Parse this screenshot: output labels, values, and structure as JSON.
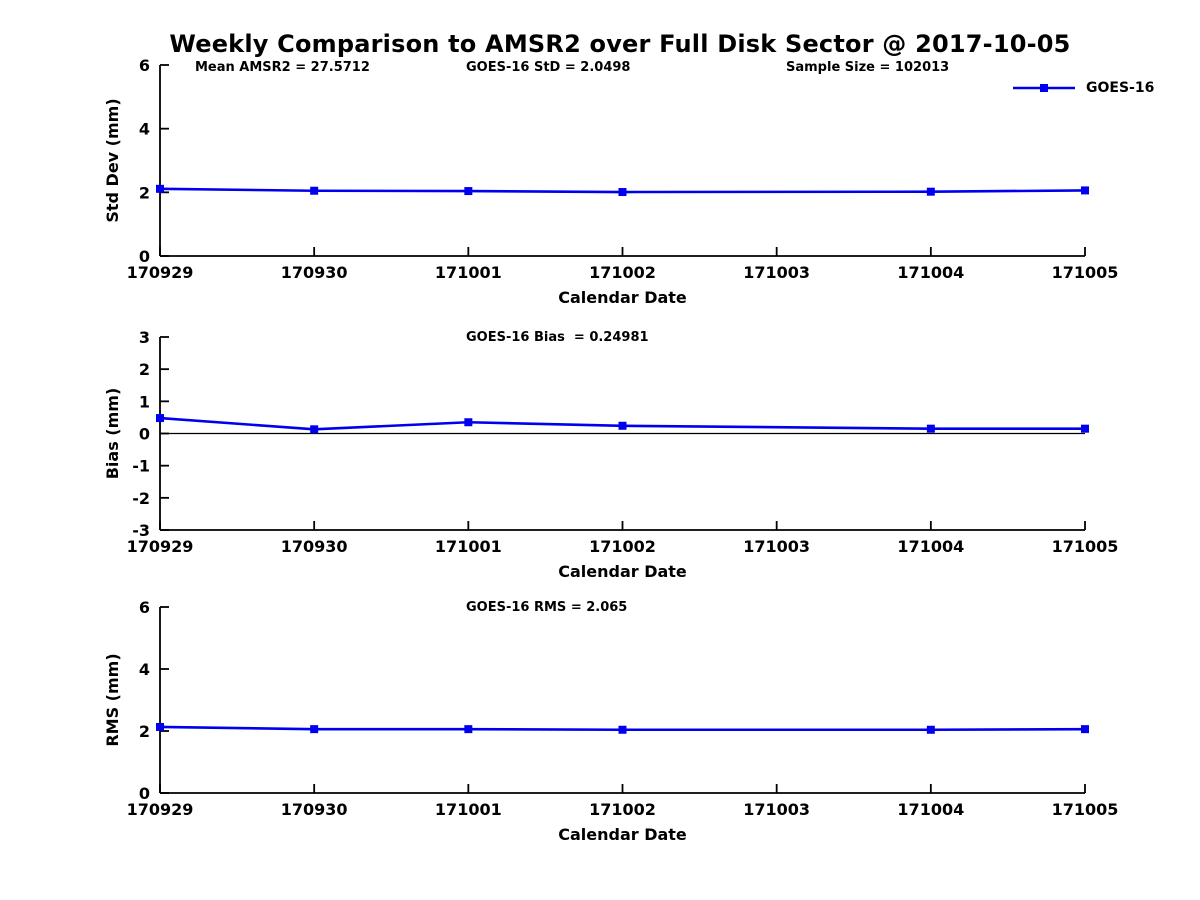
{
  "title": "Weekly Comparison to AMSR2 over Full Disk Sector @ 2017-10-05",
  "legend": {
    "label": "GOES-16"
  },
  "colors": {
    "series": "#0000ee",
    "axis": "#000000",
    "zero_line": "#000000",
    "text": "#000000",
    "background": "#ffffff"
  },
  "chart_data": [
    {
      "type": "line",
      "title": "",
      "ylabel": "Std Dev (mm)",
      "xlabel": "Calendar Date",
      "ylim": [
        0,
        6
      ],
      "yticks": [
        0,
        2,
        4,
        6
      ],
      "categories": [
        "170929",
        "170930",
        "171001",
        "171002",
        "171003",
        "171004",
        "171005"
      ],
      "grid": false,
      "zero_line": false,
      "annotations": [
        "Mean AMSR2 = 27.5712",
        "GOES-16 StD = 2.0498",
        "Sample Size = 102013"
      ],
      "series": [
        {
          "name": "GOES-16",
          "points": [
            {
              "x": "170929",
              "y": 2.11
            },
            {
              "x": "170930",
              "y": 2.05
            },
            {
              "x": "171001",
              "y": 2.04
            },
            {
              "x": "171002",
              "y": 2.01
            },
            {
              "x": "171004",
              "y": 2.02
            },
            {
              "x": "171005",
              "y": 2.06
            }
          ]
        }
      ]
    },
    {
      "type": "line",
      "title": "",
      "ylabel": "Bias (mm)",
      "xlabel": "Calendar Date",
      "ylim": [
        -3,
        3
      ],
      "yticks": [
        -3,
        -2,
        -1,
        0,
        1,
        2,
        3
      ],
      "categories": [
        "170929",
        "170930",
        "171001",
        "171002",
        "171003",
        "171004",
        "171005"
      ],
      "grid": false,
      "zero_line": true,
      "annotations": [
        "GOES-16 Bias  = 0.24981"
      ],
      "series": [
        {
          "name": "GOES-16",
          "points": [
            {
              "x": "170929",
              "y": 0.48
            },
            {
              "x": "170930",
              "y": 0.13
            },
            {
              "x": "171001",
              "y": 0.35
            },
            {
              "x": "171002",
              "y": 0.24
            },
            {
              "x": "171004",
              "y": 0.15
            },
            {
              "x": "171005",
              "y": 0.15
            }
          ]
        }
      ]
    },
    {
      "type": "line",
      "title": "",
      "ylabel": "RMS (mm)",
      "xlabel": "Calendar Date",
      "ylim": [
        0,
        6
      ],
      "yticks": [
        0,
        2,
        4,
        6
      ],
      "categories": [
        "170929",
        "170930",
        "171001",
        "171002",
        "171003",
        "171004",
        "171005"
      ],
      "grid": false,
      "zero_line": false,
      "annotations": [
        "GOES-16 RMS = 2.065"
      ],
      "series": [
        {
          "name": "GOES-16",
          "points": [
            {
              "x": "170929",
              "y": 2.13
            },
            {
              "x": "170930",
              "y": 2.06
            },
            {
              "x": "171001",
              "y": 2.06
            },
            {
              "x": "171002",
              "y": 2.04
            },
            {
              "x": "171004",
              "y": 2.04
            },
            {
              "x": "171005",
              "y": 2.06
            }
          ]
        }
      ]
    }
  ]
}
